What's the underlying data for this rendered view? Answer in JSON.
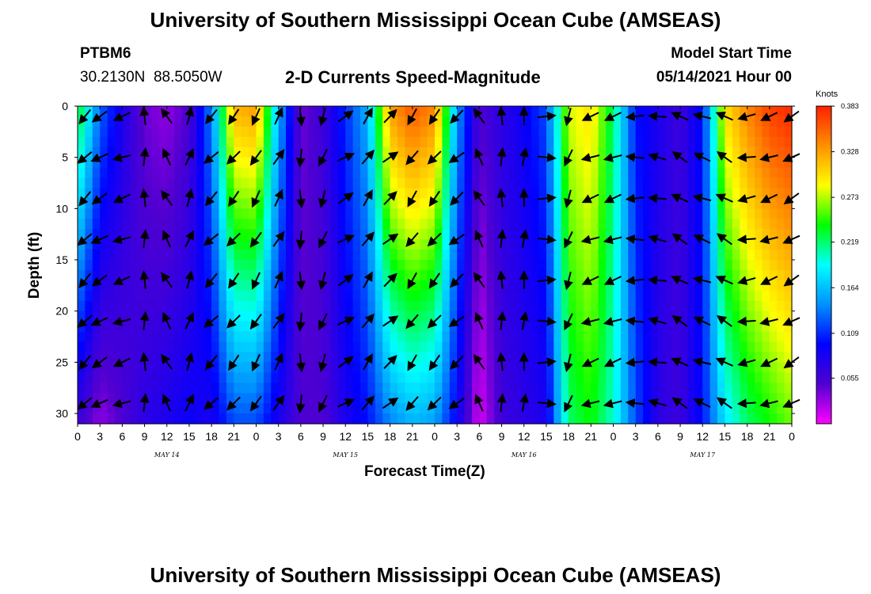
{
  "header": {
    "title_top": "University of Southern Mississippi Ocean Cube (AMSEAS)",
    "title_bottom": "University of Southern Mississippi Ocean Cube (AMSEAS)",
    "station_id": "PTBM6",
    "coordinates": "30.2130N  88.5050W",
    "plot_title": "2-D Currents Speed-Magnitude",
    "model_start_label": "Model Start Time",
    "model_start_value": "05/14/2021 Hour 00"
  },
  "chart_data": {
    "type": "heatmap",
    "title": "2-D Currents Speed-Magnitude",
    "xlabel": "Forecast Time(Z)",
    "ylabel": "Depth (ft)",
    "x_ticks": [
      "0",
      "3",
      "6",
      "9",
      "12",
      "15",
      "18",
      "21",
      "0",
      "3",
      "6",
      "9",
      "12",
      "15",
      "18",
      "21",
      "0",
      "3",
      "6",
      "9",
      "12",
      "15",
      "18",
      "21",
      "0",
      "3",
      "6",
      "9",
      "12",
      "15",
      "18",
      "21",
      "0"
    ],
    "x_range_hours": [
      0,
      96
    ],
    "day_labels": [
      {
        "label": "MAY 14",
        "hour": 12
      },
      {
        "label": "MAY 15",
        "hour": 36
      },
      {
        "label": "MAY 16",
        "hour": 60
      },
      {
        "label": "MAY 17",
        "hour": 84
      }
    ],
    "y_ticks": [
      "0",
      "5",
      "10",
      "15",
      "20",
      "25",
      "30"
    ],
    "y_range_ft": [
      0,
      31
    ],
    "y_inverted": true,
    "colorbar": {
      "unit": "Knots",
      "min": 0.0,
      "max": 0.383,
      "tick_values": [
        "0.383",
        "0.328",
        "0.273",
        "0.219",
        "0.164",
        "0.109",
        "0.055"
      ],
      "colors": [
        "#ff00ff",
        "#5000d0",
        "#0000ff",
        "#0090ff",
        "#00ffff",
        "#00ff00",
        "#ffff00",
        "#ff9000",
        "#ff2000"
      ]
    },
    "speed_profile_knots": [
      {
        "hour": 0,
        "surface": 0.24,
        "bottom": 0.06
      },
      {
        "hour": 3,
        "surface": 0.13,
        "bottom": 0.03
      },
      {
        "hour": 6,
        "surface": 0.08,
        "bottom": 0.05
      },
      {
        "hour": 9,
        "surface": 0.04,
        "bottom": 0.07
      },
      {
        "hour": 12,
        "surface": 0.03,
        "bottom": 0.08
      },
      {
        "hour": 15,
        "surface": 0.05,
        "bottom": 0.09
      },
      {
        "hour": 18,
        "surface": 0.14,
        "bottom": 0.08
      },
      {
        "hour": 21,
        "surface": 0.32,
        "bottom": 0.12
      },
      {
        "hour": 24,
        "surface": 0.33,
        "bottom": 0.12
      },
      {
        "hour": 27,
        "surface": 0.16,
        "bottom": 0.08
      },
      {
        "hour": 30,
        "surface": 0.04,
        "bottom": 0.05
      },
      {
        "hour": 33,
        "surface": 0.06,
        "bottom": 0.05
      },
      {
        "hour": 36,
        "surface": 0.11,
        "bottom": 0.08
      },
      {
        "hour": 39,
        "surface": 0.16,
        "bottom": 0.1
      },
      {
        "hour": 42,
        "surface": 0.33,
        "bottom": 0.14
      },
      {
        "hour": 45,
        "surface": 0.36,
        "bottom": 0.16
      },
      {
        "hour": 48,
        "surface": 0.34,
        "bottom": 0.15
      },
      {
        "hour": 51,
        "surface": 0.15,
        "bottom": 0.09
      },
      {
        "hour": 54,
        "surface": 0.05,
        "bottom": 0.01
      },
      {
        "hour": 57,
        "surface": 0.07,
        "bottom": 0.06
      },
      {
        "hour": 60,
        "surface": 0.09,
        "bottom": 0.07
      },
      {
        "hour": 63,
        "surface": 0.12,
        "bottom": 0.08
      },
      {
        "hour": 66,
        "surface": 0.28,
        "bottom": 0.22
      },
      {
        "hour": 69,
        "surface": 0.3,
        "bottom": 0.24
      },
      {
        "hour": 72,
        "surface": 0.22,
        "bottom": 0.2
      },
      {
        "hour": 75,
        "surface": 0.1,
        "bottom": 0.12
      },
      {
        "hour": 78,
        "surface": 0.08,
        "bottom": 0.07
      },
      {
        "hour": 81,
        "surface": 0.06,
        "bottom": 0.06
      },
      {
        "hour": 84,
        "surface": 0.1,
        "bottom": 0.1
      },
      {
        "hour": 87,
        "surface": 0.3,
        "bottom": 0.18
      },
      {
        "hour": 90,
        "surface": 0.34,
        "bottom": 0.22
      },
      {
        "hour": 93,
        "surface": 0.37,
        "bottom": 0.24
      },
      {
        "hour": 96,
        "surface": 0.38,
        "bottom": 0.26
      }
    ],
    "vector_rows_depth_ft": [
      1,
      5,
      9,
      13,
      17,
      21,
      25,
      29
    ],
    "vector_columns_hours": [
      1,
      3,
      6,
      9,
      12,
      15,
      18,
      21,
      24,
      27,
      30,
      33,
      36,
      39,
      42,
      45,
      48,
      51,
      54,
      57,
      60,
      63,
      66,
      69,
      72,
      75,
      78,
      81,
      84,
      87,
      90,
      93,
      96
    ],
    "current_direction_deg": [
      225,
      240,
      250,
      0,
      330,
      20,
      225,
      220,
      210,
      30,
      180,
      200,
      60,
      35,
      50,
      215,
      220,
      230,
      330,
      0,
      5,
      90,
      200,
      250,
      250,
      270,
      280,
      300,
      290,
      300,
      260,
      250,
      240
    ]
  }
}
